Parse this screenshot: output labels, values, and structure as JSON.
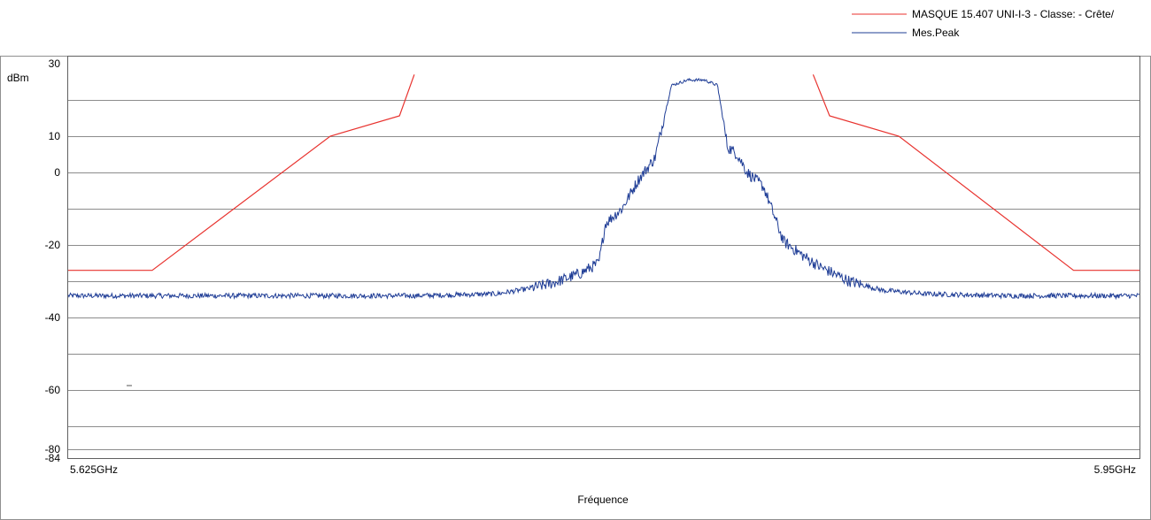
{
  "chart_data": {
    "type": "line",
    "title": "",
    "xlabel": "Fréquence",
    "ylabel": "dBm",
    "xlim": [
      5.625,
      5.95
    ],
    "ylim": [
      -84,
      30
    ],
    "x_tick_labels": [
      "5.625GHz",
      "5.95GHz"
    ],
    "y_ticks": [
      30,
      10,
      0,
      -20,
      -40,
      -60,
      -80,
      -84
    ],
    "gridlines_y": [
      30,
      20,
      10,
      0,
      -10,
      -20,
      -30,
      -40,
      -50,
      -60,
      -70,
      -80,
      -84
    ],
    "grid": true,
    "legend_position": "top-right",
    "series": [
      {
        "name": "MASQUE 15.407 UNI-I-3 - Classe: - Crête/",
        "color": "#e8322e",
        "segments": [
          {
            "x": [
              5.625,
              5.6505,
              5.7045,
              5.7255,
              5.73
            ],
            "y": [
              -27,
              -27,
              10,
              15.6,
              27
            ]
          },
          {
            "x": [
              5.851,
              5.856,
              5.877,
              5.93,
              5.95
            ],
            "y": [
              27,
              15.6,
              10,
              -27,
              -27
            ]
          }
        ]
      },
      {
        "name": "Mes.Peak",
        "color": "#1f3d96",
        "x": [
          5.625,
          5.66,
          5.7,
          5.73,
          5.755,
          5.765,
          5.772,
          5.78,
          5.786,
          5.788,
          5.793,
          5.798,
          5.803,
          5.808,
          5.813,
          5.818,
          5.822,
          5.825,
          5.828,
          5.831,
          5.836,
          5.842,
          5.848,
          5.853,
          5.862,
          5.872,
          5.885,
          5.91,
          5.95
        ],
        "y": [
          -34,
          -34,
          -34,
          -34,
          -33.5,
          -32,
          -30.5,
          -28,
          -25,
          -14,
          -10,
          -2,
          4,
          24,
          25.5,
          25.5,
          24,
          7,
          5,
          0,
          -4,
          -19,
          -23,
          -26,
          -30,
          -32.5,
          -33.5,
          -34,
          -34
        ]
      }
    ]
  }
}
